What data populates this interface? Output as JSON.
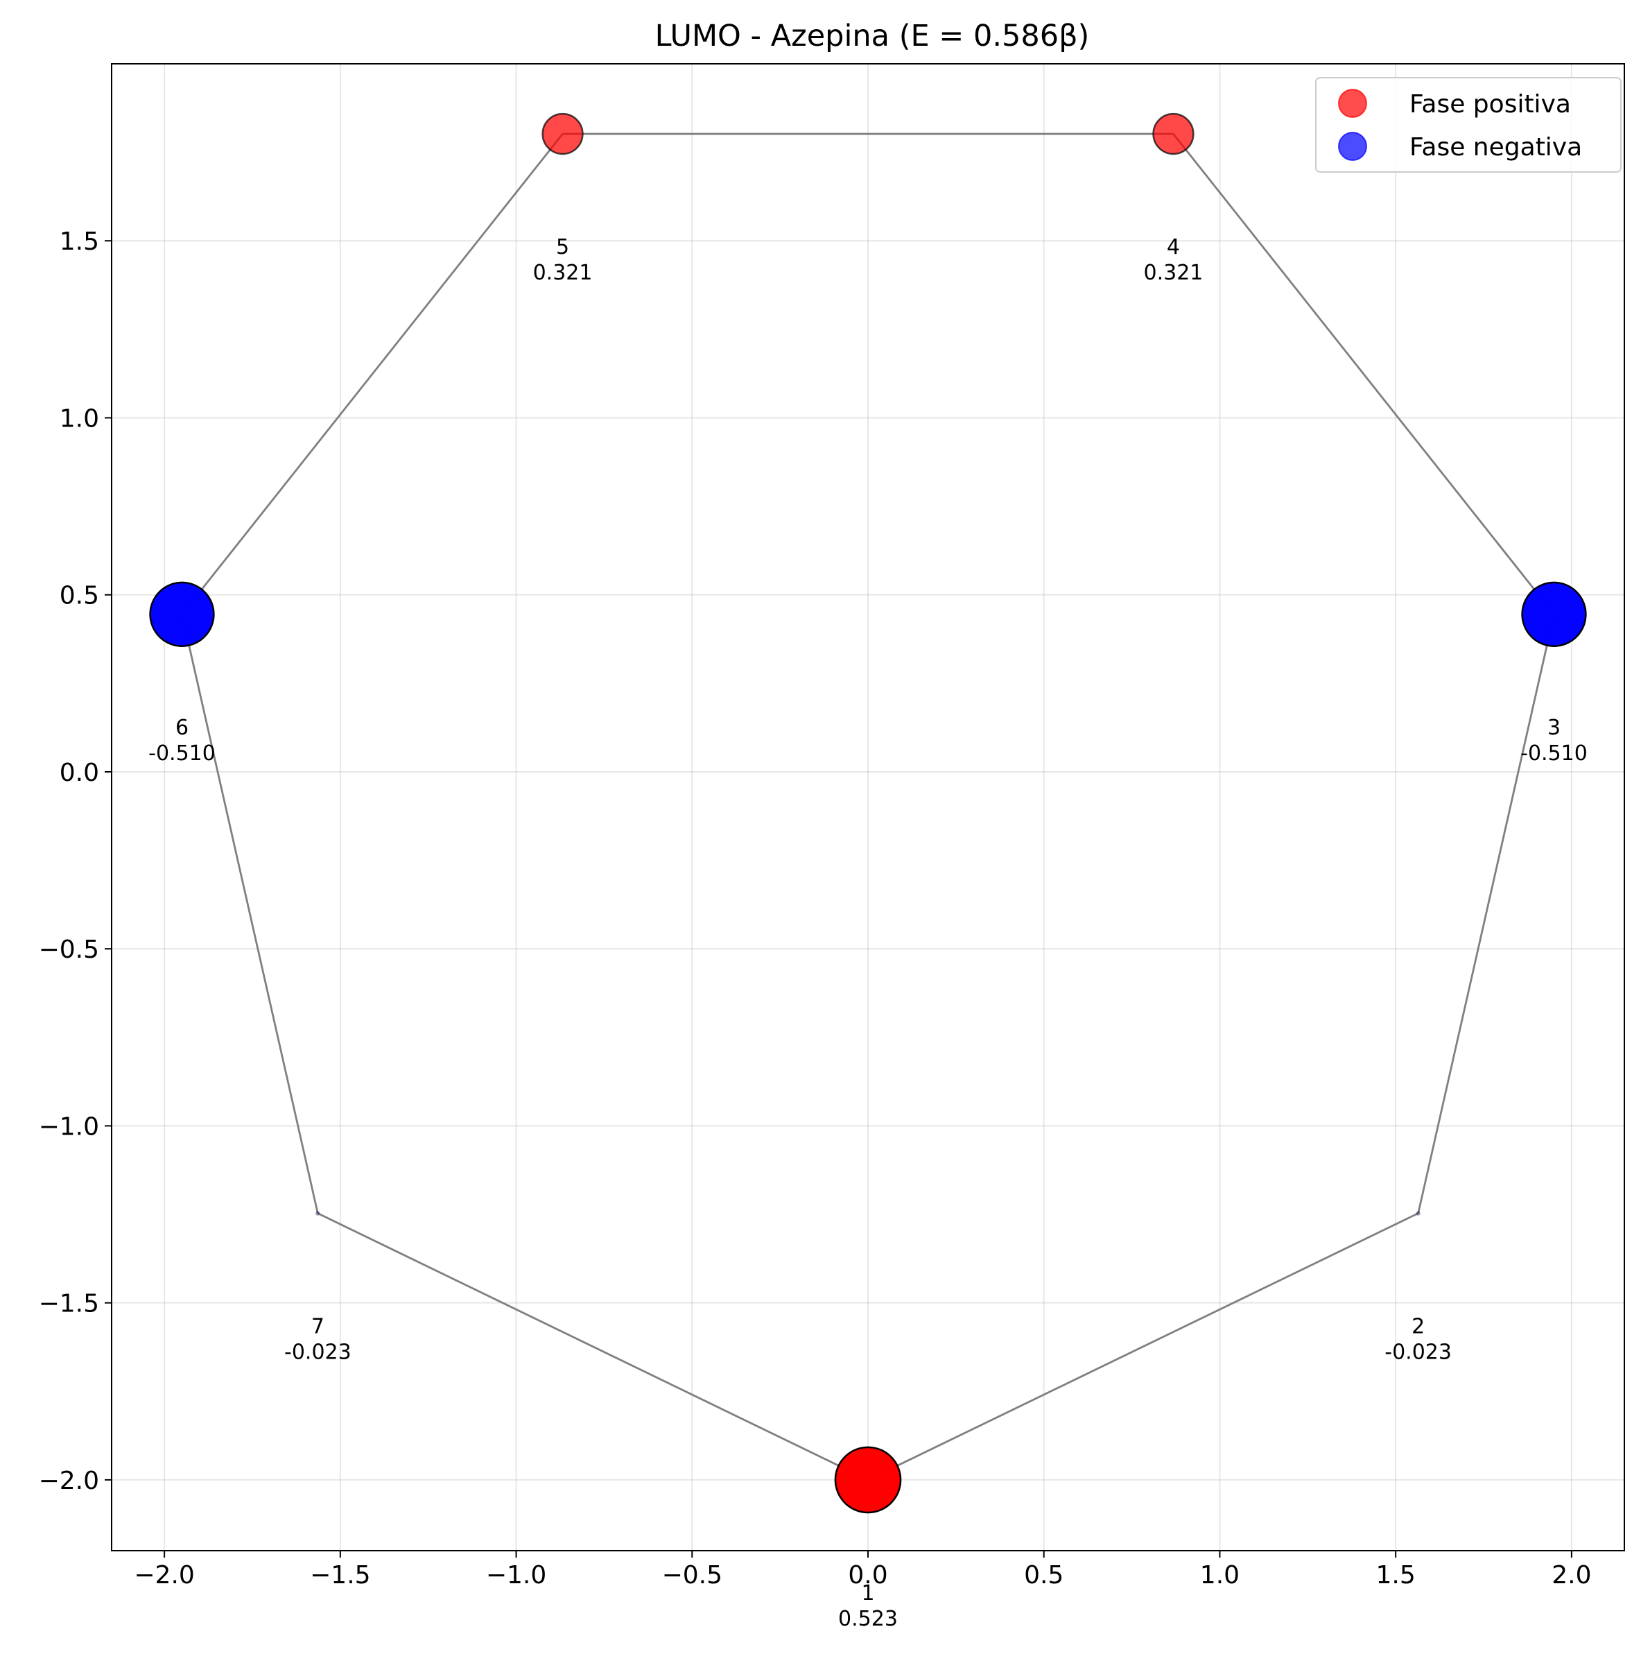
{
  "chart_data": {
    "type": "scatter",
    "title": "LUMO - Azepina (E = 0.586β)",
    "xlabel": "",
    "ylabel": "",
    "xlim": [
      -2.15,
      2.15
    ],
    "ylim": [
      -2.2,
      2.0
    ],
    "x_ticks": [
      -2.0,
      -1.5,
      -1.0,
      -0.5,
      0.0,
      0.5,
      1.0,
      1.5,
      2.0
    ],
    "y_ticks": [
      -2.0,
      -1.5,
      -1.0,
      -0.5,
      0.0,
      0.5,
      1.0,
      1.5
    ],
    "x_tick_labels": [
      "−2.0",
      "−1.5",
      "−1.0",
      "−0.5",
      "0.0",
      "0.5",
      "1.0",
      "1.5",
      "2.0"
    ],
    "y_tick_labels": [
      "−2.0",
      "−1.5",
      "−1.0",
      "−0.5",
      "0.0",
      "0.5",
      "1.0",
      "1.5"
    ],
    "grid": true,
    "legend_position": "top-right",
    "legend": [
      {
        "label": "Fase positiva",
        "color": "#ff0000"
      },
      {
        "label": "Fase negativa",
        "color": "#0000ff"
      }
    ],
    "positive_color": "#ff0000",
    "negative_color": "#0000ff",
    "bond_color": "#808080",
    "atoms": [
      {
        "index": "1",
        "x": 0.0,
        "y": -2.0,
        "coefficient": 0.523,
        "coef_label": "0.523"
      },
      {
        "index": "2",
        "x": 1.564,
        "y": -1.247,
        "coefficient": -0.023,
        "coef_label": "-0.023"
      },
      {
        "index": "3",
        "x": 1.95,
        "y": 0.445,
        "coefficient": -0.51,
        "coef_label": "-0.510"
      },
      {
        "index": "4",
        "x": 0.868,
        "y": 1.802,
        "coefficient": 0.321,
        "coef_label": "0.321"
      },
      {
        "index": "5",
        "x": -0.868,
        "y": 1.802,
        "coefficient": 0.321,
        "coef_label": "0.321"
      },
      {
        "index": "6",
        "x": -1.95,
        "y": 0.445,
        "coefficient": -0.51,
        "coef_label": "-0.510"
      },
      {
        "index": "7",
        "x": -1.564,
        "y": -1.247,
        "coefficient": -0.023,
        "coef_label": "-0.023"
      }
    ],
    "bonds": [
      [
        1,
        2
      ],
      [
        2,
        3
      ],
      [
        3,
        4
      ],
      [
        4,
        5
      ],
      [
        5,
        6
      ],
      [
        6,
        7
      ],
      [
        7,
        1
      ]
    ]
  }
}
